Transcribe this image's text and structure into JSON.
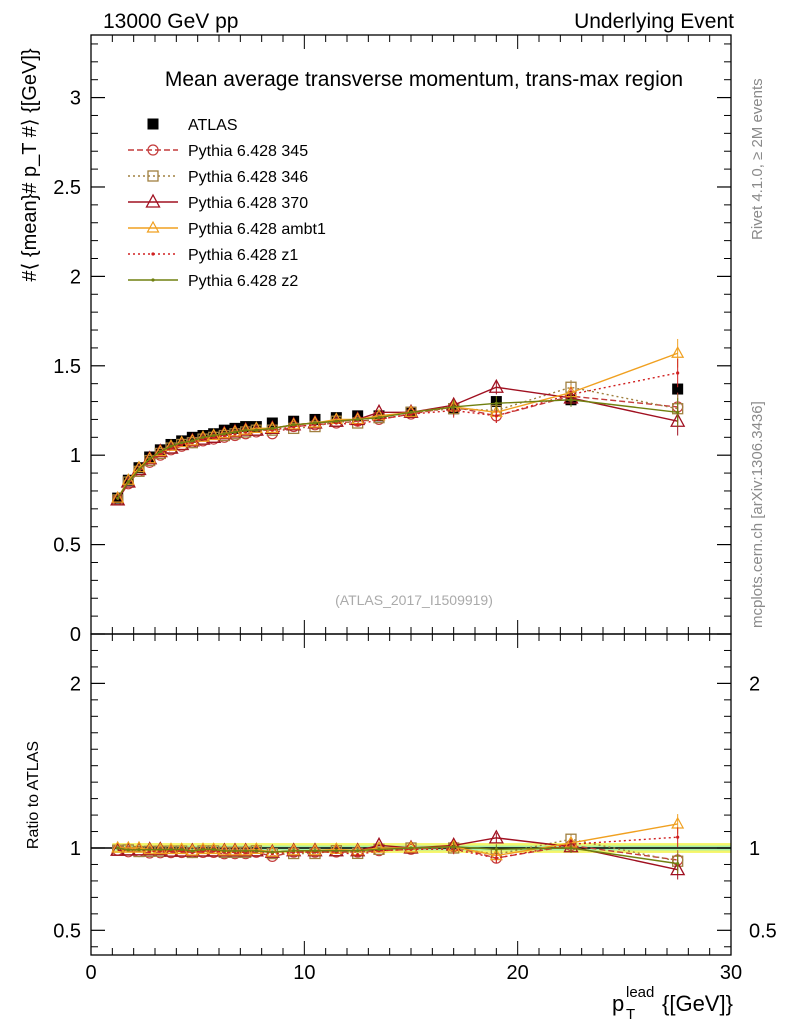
{
  "header": {
    "left": "13000 GeV pp",
    "right": "Underlying Event"
  },
  "side": {
    "rivet": "Rivet 4.1.0, ≥ 2M events",
    "mcplots": "mcplots.cern.ch [arXiv:1306.3436]"
  },
  "colors": {
    "atlas": "#000000",
    "p345": "#c43c3c",
    "p346": "#a08040",
    "p370": "#a01020",
    "ambt1": "#f0a020",
    "z1": "#d02020",
    "z2": "#708010",
    "band_yellow": "#f5f56a",
    "band_green": "#a8f0a8"
  },
  "chart_data": [
    {
      "type": "scatter",
      "title": "Mean average transverse momentum, trans-max region",
      "watermark": "(ATLAS_2017_I1509919)",
      "ylabel": "#⟨ {mean}# p_T #⟩ {[GeV]}",
      "xlabel": "",
      "xlim": [
        0,
        30
      ],
      "ylim": [
        0,
        3.35
      ],
      "yticks": [
        0,
        0.5,
        1,
        1.5,
        2,
        2.5,
        3
      ],
      "ytick_labels": [
        "0",
        "0.5",
        "1",
        "1.5",
        "2",
        "2.5",
        "3"
      ],
      "x": [
        1.25,
        1.75,
        2.25,
        2.75,
        3.25,
        3.75,
        4.25,
        4.75,
        5.25,
        5.75,
        6.25,
        6.75,
        7.25,
        7.75,
        8.5,
        9.5,
        10.5,
        11.5,
        12.5,
        13.5,
        15.0,
        17.0,
        19.0,
        22.5,
        27.5
      ],
      "series": [
        {
          "name": "ATLAS",
          "key": "atlas",
          "style": "data",
          "values": [
            0.76,
            0.86,
            0.93,
            0.99,
            1.03,
            1.06,
            1.08,
            1.1,
            1.11,
            1.12,
            1.14,
            1.15,
            1.16,
            1.16,
            1.18,
            1.19,
            1.2,
            1.21,
            1.22,
            1.22,
            1.24,
            1.26,
            1.3,
            1.31,
            1.37
          ]
        },
        {
          "name": "Pythia 6.428 345",
          "key": "p345",
          "style": "dashed",
          "marker": "circle",
          "values": [
            0.75,
            0.84,
            0.91,
            0.96,
            1.0,
            1.03,
            1.05,
            1.07,
            1.08,
            1.09,
            1.1,
            1.11,
            1.12,
            1.13,
            1.12,
            1.16,
            1.17,
            1.18,
            1.19,
            1.2,
            1.23,
            1.27,
            1.22,
            1.33,
            1.27
          ]
        },
        {
          "name": "Pythia 6.428 346",
          "key": "p346",
          "style": "dotted",
          "marker": "square",
          "values": [
            0.75,
            0.85,
            0.91,
            0.97,
            1.01,
            1.04,
            1.06,
            1.07,
            1.09,
            1.1,
            1.11,
            1.12,
            1.13,
            1.14,
            1.14,
            1.15,
            1.16,
            1.19,
            1.18,
            1.21,
            1.24,
            1.26,
            1.25,
            1.38,
            1.26
          ]
        },
        {
          "name": "Pythia 6.428 370",
          "key": "p370",
          "style": "solid",
          "marker": "triangle-big",
          "values": [
            0.75,
            0.85,
            0.92,
            0.98,
            1.02,
            1.04,
            1.06,
            1.08,
            1.09,
            1.1,
            1.12,
            1.13,
            1.14,
            1.14,
            1.15,
            1.17,
            1.18,
            1.19,
            1.2,
            1.24,
            1.24,
            1.28,
            1.38,
            1.32,
            1.19
          ]
        },
        {
          "name": "Pythia 6.428 ambt1",
          "key": "ambt1",
          "style": "solid",
          "marker": "triangle",
          "values": [
            0.76,
            0.86,
            0.93,
            0.98,
            1.02,
            1.05,
            1.07,
            1.08,
            1.1,
            1.11,
            1.12,
            1.13,
            1.14,
            1.15,
            1.15,
            1.17,
            1.18,
            1.2,
            1.2,
            1.22,
            1.24,
            1.27,
            1.24,
            1.35,
            1.57
          ]
        },
        {
          "name": "Pythia 6.428 z1",
          "key": "z1",
          "style": "dotted",
          "marker": "dot",
          "values": [
            0.76,
            0.85,
            0.92,
            0.97,
            1.01,
            1.04,
            1.06,
            1.07,
            1.09,
            1.1,
            1.11,
            1.12,
            1.13,
            1.14,
            1.14,
            1.16,
            1.17,
            1.18,
            1.17,
            1.2,
            1.23,
            1.25,
            1.22,
            1.34,
            1.46
          ]
        },
        {
          "name": "Pythia 6.428 z2",
          "key": "z2",
          "style": "solid",
          "marker": "dot",
          "values": [
            0.76,
            0.85,
            0.92,
            0.98,
            1.02,
            1.05,
            1.07,
            1.08,
            1.1,
            1.11,
            1.12,
            1.13,
            1.14,
            1.14,
            1.15,
            1.17,
            1.18,
            1.19,
            1.2,
            1.21,
            1.24,
            1.27,
            1.29,
            1.31,
            1.24
          ]
        }
      ]
    },
    {
      "type": "line",
      "title": "",
      "ylabel": "Ratio to ATLAS",
      "xlabel": "p_T^lead {[GeV]}",
      "xlabel_main": "p",
      "xlabel_sub": "T",
      "xlabel_sup": "lead",
      "xlabel_unit": "{[GeV]}",
      "xlim": [
        0,
        30
      ],
      "ylim": [
        0.35,
        2.3
      ],
      "xticks": [
        0,
        10,
        20,
        30
      ],
      "xtick_labels": [
        "0",
        "10",
        "20",
        "30"
      ],
      "yticks_left": [
        0.5,
        1,
        2
      ],
      "ytick_labels_left": [
        "0.5",
        "1",
        "2"
      ],
      "yticks_right": [
        0.5,
        1,
        2
      ],
      "ytick_labels_right": [
        "0.5",
        "1",
        "2"
      ],
      "reference": 1,
      "ratio_label": "Ratio to ATLAS"
    }
  ]
}
